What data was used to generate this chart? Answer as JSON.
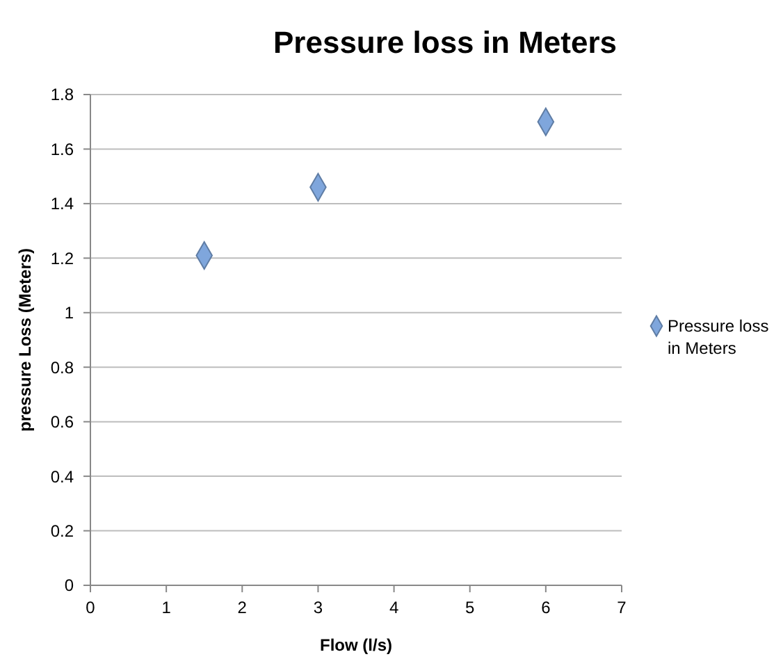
{
  "chart_data": {
    "type": "scatter",
    "title": "Pressure loss in Meters",
    "xlabel": "Flow (l/s)",
    "ylabel": "pressure Loss (Meters)",
    "x": [
      1.5,
      3,
      6
    ],
    "series": [
      {
        "name": "Pressure loss in Meters",
        "color": "#7fa6dc",
        "values": [
          1.21,
          1.46,
          1.7
        ]
      }
    ],
    "xlim": [
      0,
      7
    ],
    "xticks": [
      0,
      1,
      2,
      3,
      4,
      5,
      6,
      7
    ],
    "ylim": [
      0,
      1.8
    ],
    "yticks": [
      0,
      {
        "value": 0.2,
        "label": "0.2"
      },
      {
        "value": 0.4,
        "label": "0.4"
      },
      {
        "value": 0.6,
        "label": "0.6"
      },
      {
        "value": 0.8,
        "label": "0.8"
      },
      1,
      {
        "value": 1.2,
        "label": "1.2"
      },
      {
        "value": 1.4,
        "label": "1.4"
      },
      {
        "value": 1.6,
        "label": "1.6"
      },
      {
        "value": 1.8,
        "label": "1.8"
      }
    ],
    "grid": "y",
    "legend": "right",
    "marker": "diamond"
  }
}
